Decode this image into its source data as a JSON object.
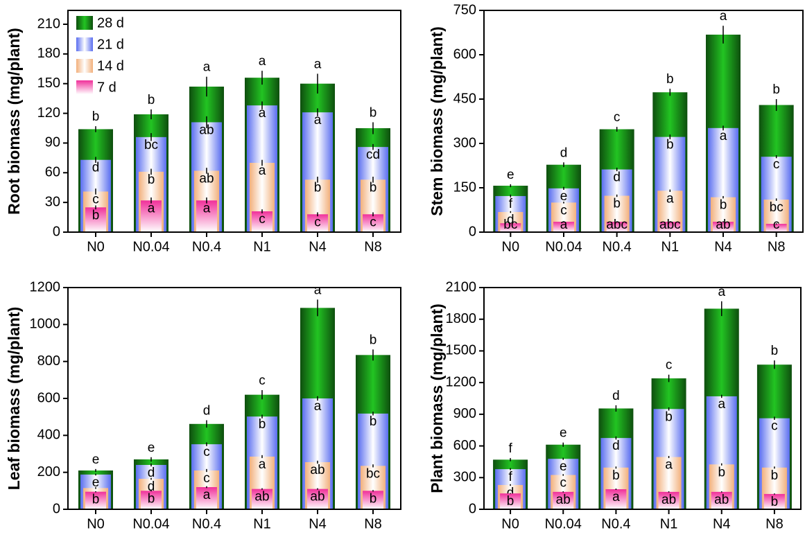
{
  "chart_data": [
    {
      "type": "bar",
      "ylabel": "Root biomass (mg/plant)",
      "categories": [
        "N0",
        "N0.04",
        "N0.4",
        "N1",
        "N4",
        "N8"
      ],
      "ylim": [
        0,
        224
      ],
      "yticks": [
        0,
        30,
        60,
        90,
        120,
        150,
        180,
        210
      ],
      "series": [
        {
          "name": "28 d",
          "color": "#22c422",
          "values": [
            104,
            119,
            147,
            156,
            150,
            105
          ],
          "errors": [
            3,
            5,
            10,
            7,
            10,
            6
          ],
          "letters": [
            "b",
            "b",
            "a",
            "a",
            "a",
            "b"
          ]
        },
        {
          "name": "21 d",
          "color": "#5a6ef0",
          "values": [
            73,
            96,
            111,
            128,
            121,
            86
          ],
          "errors": [
            3,
            4,
            6,
            4,
            4,
            3
          ],
          "letters": [
            "d",
            "bc",
            "ab",
            "a",
            "a",
            "cd"
          ]
        },
        {
          "name": "14 d",
          "color": "#f2b07c",
          "values": [
            41,
            61,
            62,
            70,
            53,
            53
          ],
          "errors": [
            3,
            3,
            3,
            3,
            3,
            3
          ],
          "letters": [
            "c",
            "b",
            "ab",
            "a",
            "b",
            "b"
          ]
        },
        {
          "name": "7 d",
          "color": "#f0309a",
          "values": [
            25,
            32,
            32,
            21,
            18,
            18
          ],
          "errors": [
            2,
            3,
            3,
            2,
            2,
            2
          ],
          "letters": [
            "b",
            "a",
            "a",
            "c",
            "c",
            "c"
          ]
        }
      ]
    },
    {
      "type": "bar",
      "ylabel": "Stem biomass (mg/plant)",
      "categories": [
        "N0",
        "N0.04",
        "N0.4",
        "N1",
        "N4",
        "N8"
      ],
      "ylim": [
        0,
        750
      ],
      "yticks": [
        0,
        150,
        300,
        450,
        600,
        750
      ],
      "series": [
        {
          "color": "#22c422",
          "values": [
            157,
            228,
            348,
            473,
            668,
            430
          ],
          "errors": [
            5,
            8,
            8,
            12,
            30,
            20
          ],
          "letters": [
            "e",
            "d",
            "c",
            "b",
            "a",
            "b"
          ]
        },
        {
          "color": "#5a6ef0",
          "values": [
            122,
            148,
            212,
            322,
            352,
            255
          ],
          "errors": [
            5,
            5,
            6,
            8,
            8,
            5
          ],
          "letters": [
            "f",
            "e",
            "d",
            "b",
            "a",
            "c"
          ]
        },
        {
          "color": "#f2b07c",
          "values": [
            68,
            100,
            123,
            140,
            118,
            110
          ],
          "errors": [
            3,
            3,
            4,
            4,
            4,
            4
          ],
          "letters": [
            "d",
            "c",
            "b",
            "a",
            "b",
            "bc"
          ]
        },
        {
          "color": "#f0309a",
          "values": [
            30,
            35,
            35,
            35,
            35,
            28
          ],
          "errors": [
            1,
            2,
            2,
            2,
            2,
            2
          ],
          "letters": [
            "bc",
            "a",
            "abc",
            "abc",
            "ab",
            "c"
          ]
        }
      ]
    },
    {
      "type": "bar",
      "ylabel": "Leaf biomass (mg/plant)",
      "categories": [
        "N0",
        "N0.04",
        "N0.4",
        "N1",
        "N4",
        "N8"
      ],
      "ylim": [
        0,
        1200
      ],
      "yticks": [
        0,
        200,
        400,
        600,
        800,
        1000,
        1200
      ],
      "series": [
        {
          "color": "#22c422",
          "values": [
            210,
            270,
            462,
            620,
            1090,
            835
          ],
          "errors": [
            8,
            12,
            20,
            25,
            45,
            30
          ],
          "letters": [
            "e",
            "e",
            "d",
            "c",
            "a",
            "b"
          ]
        },
        {
          "color": "#5a6ef0",
          "values": [
            188,
            240,
            352,
            502,
            600,
            518
          ],
          "errors": [
            5,
            8,
            10,
            10,
            12,
            10
          ],
          "letters": [
            "e",
            "d",
            "c",
            "b",
            "a",
            "b"
          ]
        },
        {
          "color": "#f2b07c",
          "values": [
            115,
            165,
            210,
            285,
            255,
            235
          ],
          "errors": [
            5,
            5,
            8,
            8,
            8,
            8
          ],
          "letters": [
            "e",
            "d",
            "c",
            "a",
            "ab",
            "bc"
          ]
        },
        {
          "color": "#f0309a",
          "values": [
            95,
            100,
            120,
            110,
            110,
            100
          ],
          "errors": [
            3,
            3,
            5,
            4,
            4,
            4
          ],
          "letters": [
            "b",
            "b",
            "a",
            "ab",
            "ab",
            "b"
          ]
        }
      ]
    },
    {
      "type": "bar",
      "ylabel": "Plant biomass (mg/plant)",
      "categories": [
        "N0",
        "N0.04",
        "N0.4",
        "N1",
        "N4",
        "N8"
      ],
      "ylim": [
        0,
        2100
      ],
      "yticks": [
        0,
        300,
        600,
        900,
        1200,
        1500,
        1800,
        2100
      ],
      "series": [
        {
          "color": "#22c422",
          "values": [
            470,
            612,
            955,
            1240,
            1900,
            1370
          ],
          "errors": [
            15,
            20,
            30,
            35,
            70,
            40
          ],
          "letters": [
            "f",
            "e",
            "d",
            "c",
            "a",
            "b"
          ]
        },
        {
          "color": "#5a6ef0",
          "values": [
            380,
            478,
            675,
            950,
            1070,
            862
          ],
          "errors": [
            10,
            10,
            15,
            15,
            15,
            15
          ],
          "letters": [
            "f",
            "e",
            "d",
            "b",
            "a",
            "c"
          ]
        },
        {
          "color": "#f2b07c",
          "values": [
            230,
            325,
            395,
            495,
            425,
            395
          ],
          "errors": [
            8,
            8,
            10,
            10,
            10,
            10
          ],
          "letters": [
            "d",
            "c",
            "b",
            "a",
            "b",
            "b"
          ]
        },
        {
          "color": "#f0309a",
          "values": [
            150,
            165,
            190,
            165,
            165,
            145
          ],
          "errors": [
            4,
            5,
            6,
            5,
            5,
            5
          ],
          "letters": [
            "b",
            "ab",
            "a",
            "ab",
            "ab",
            "b"
          ]
        }
      ]
    }
  ]
}
